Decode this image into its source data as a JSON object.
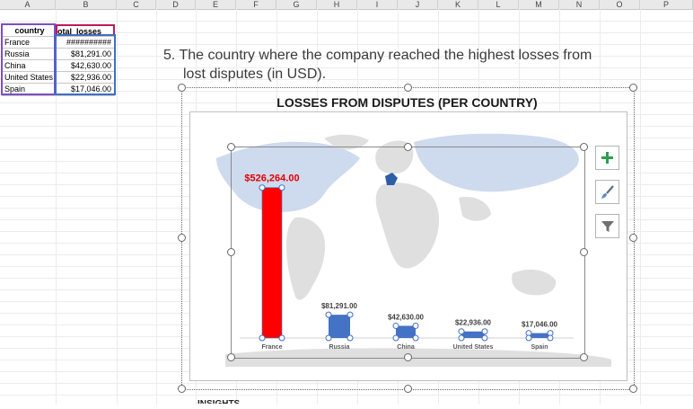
{
  "columns": [
    "A",
    "B",
    "C",
    "D",
    "E",
    "F",
    "G",
    "H",
    "I",
    "J",
    "K",
    "L",
    "M",
    "N",
    "O",
    "P"
  ],
  "table": {
    "header": {
      "country": "country",
      "total_losses": "otal_losses"
    },
    "rows": [
      {
        "country": "France",
        "value": "##########"
      },
      {
        "country": "Russia",
        "value": "$81,291.00"
      },
      {
        "country": "China",
        "value": "$42,630.00"
      },
      {
        "country": "United States",
        "value": "$22,936.00"
      },
      {
        "country": "Spain",
        "value": "$17,046.00"
      }
    ]
  },
  "question": {
    "line1": "5. The country where the company reached the highest losses from",
    "line2": "lost disputes (in USD)."
  },
  "chart_data": {
    "type": "bar",
    "title": "LOSSES FROM DISPUTES (PER COUNTRY)",
    "categories": [
      "France",
      "Russia",
      "China",
      "United States",
      "Spain"
    ],
    "values": [
      526264,
      81291,
      42630,
      22936,
      17046
    ],
    "data_labels": [
      "$526,264.00",
      "$81,291.00",
      "$42,630.00",
      "$22,936.00",
      "$17,046.00"
    ],
    "ylim": [
      0,
      560000
    ],
    "highlight_color": "#ff0000",
    "bar_color": "#4472c4",
    "highlight_label_color": "#e00000",
    "background": "world map",
    "map_colors": {
      "land": "#d9d9d9",
      "highlight": "#c5d3ea",
      "marker": "#2e5ea8"
    }
  },
  "side_buttons": [
    "plus-icon",
    "brush-icon",
    "filter-icon"
  ],
  "next_heading": "INSIGHTS"
}
